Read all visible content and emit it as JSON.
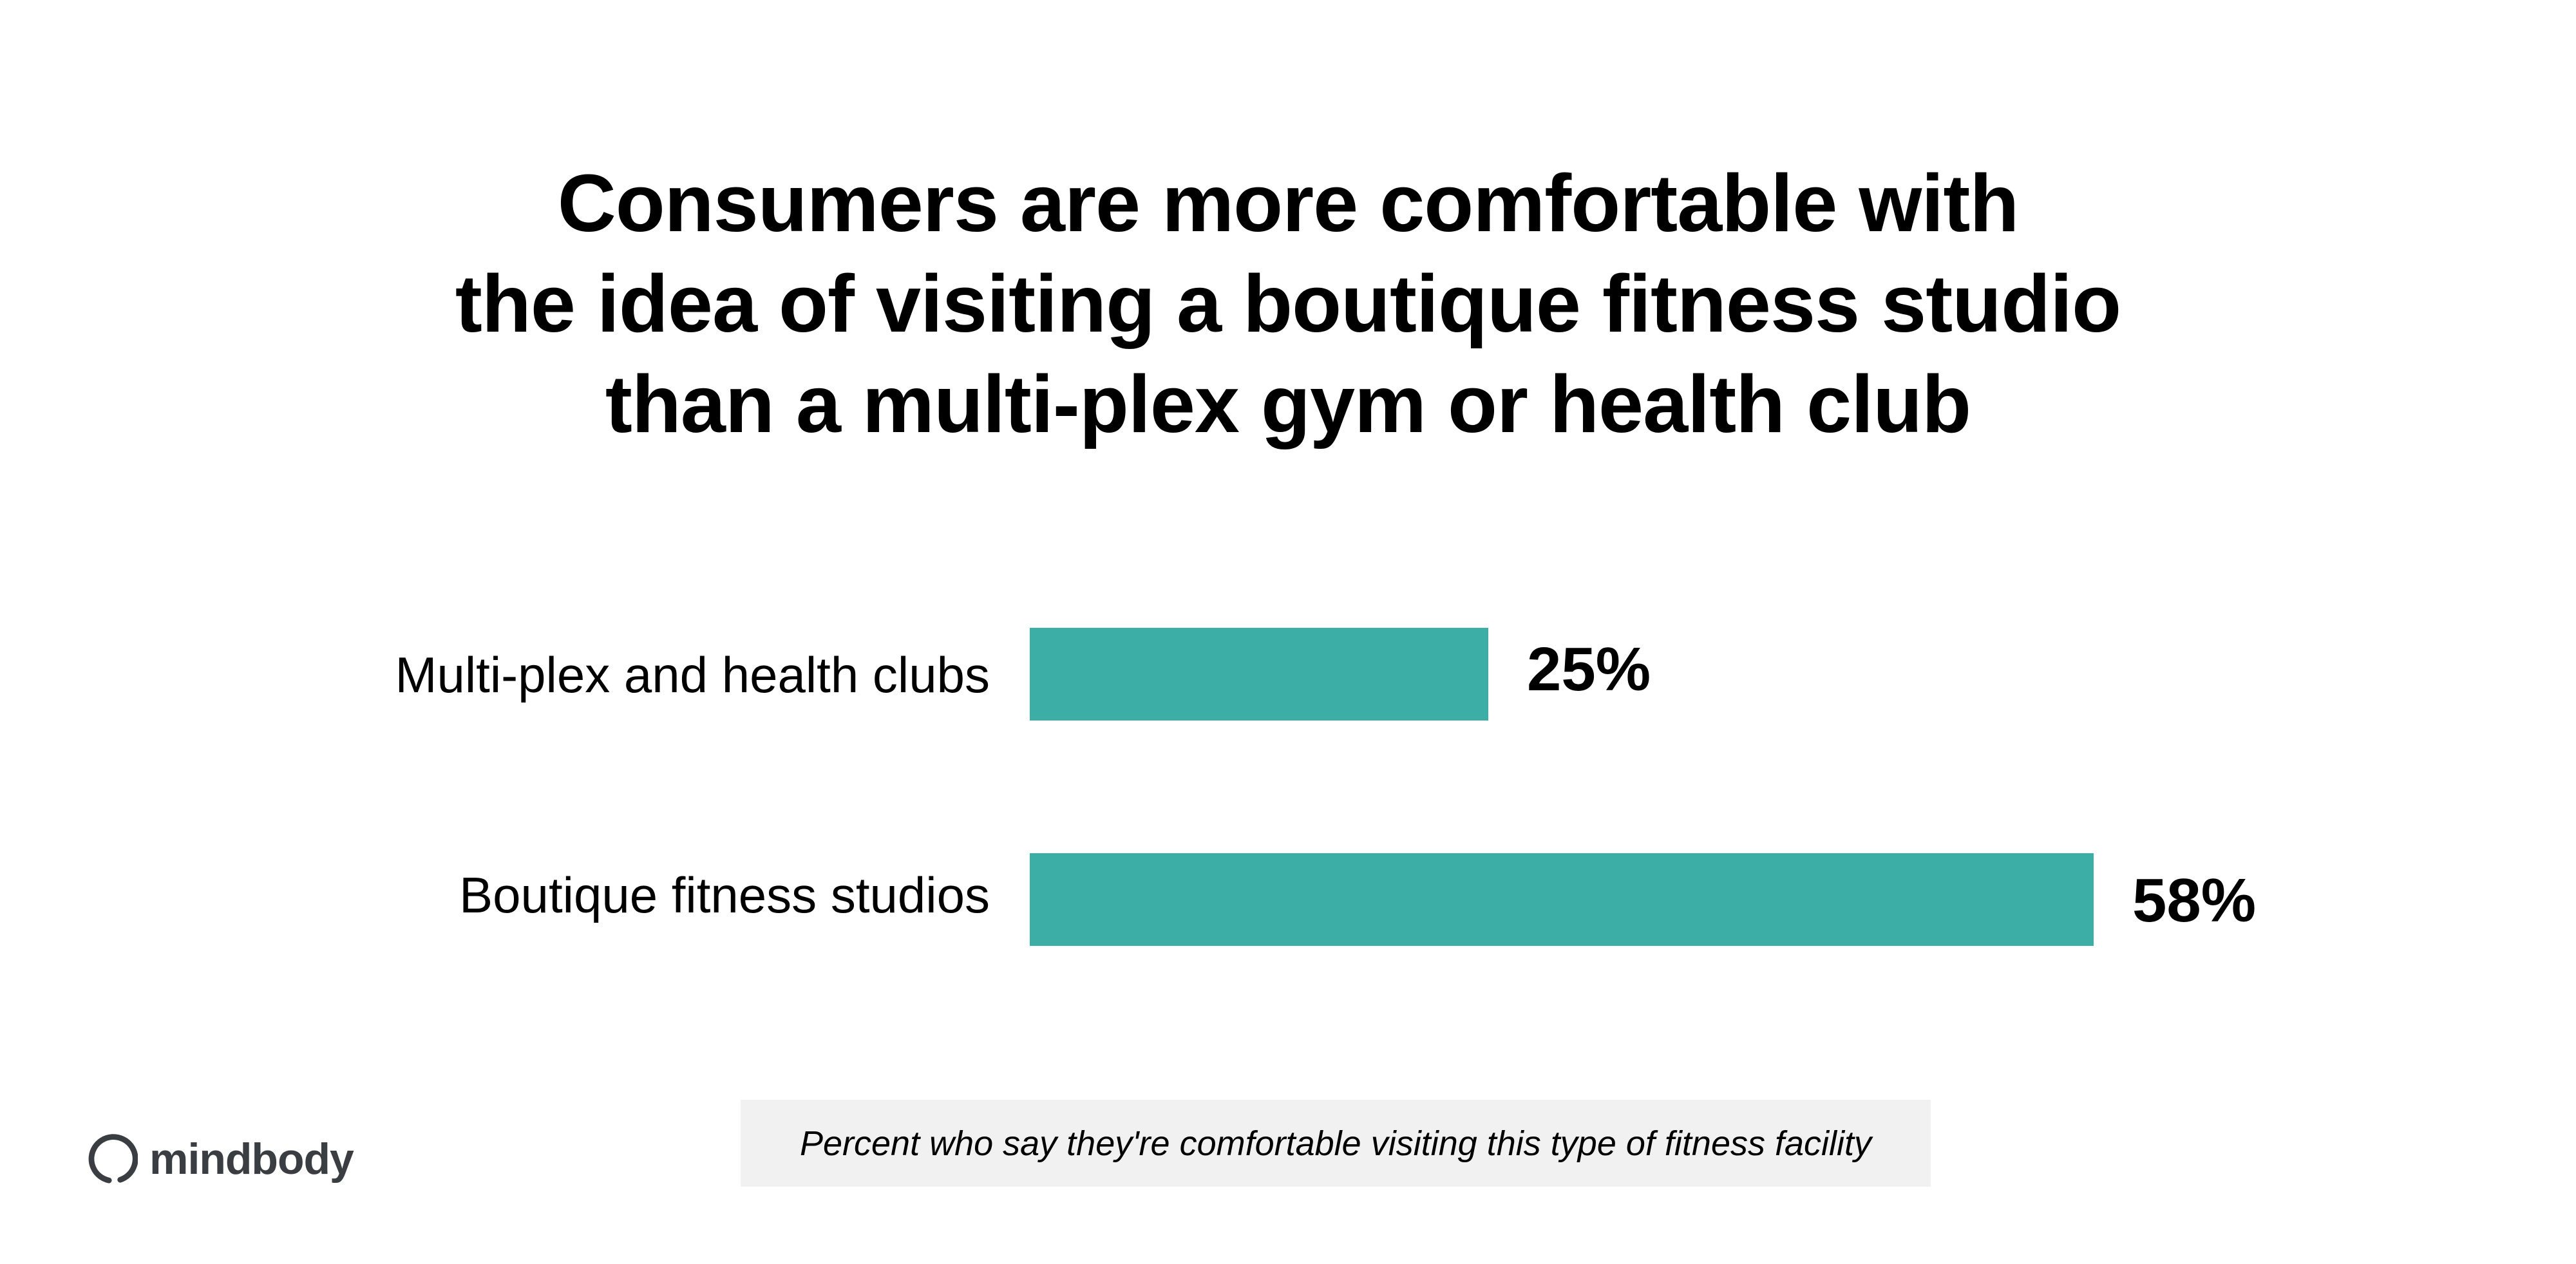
{
  "title": {
    "lines": [
      "Consumers are more comfortable with",
      "the idea of visiting a boutique fitness studio",
      "than a multi-plex gym or health club"
    ]
  },
  "chart": {
    "bar_color": "#3DAEA5",
    "rows": [
      {
        "label": "Multi-plex and health clubs",
        "value": 25,
        "value_label": "25%"
      },
      {
        "label": "Boutique fitness studios",
        "value": 58,
        "value_label": "58%"
      }
    ]
  },
  "footnote": {
    "text": "Percent who say they're comfortable visiting this type of fitness facility"
  },
  "brand": {
    "logo_text": "mindbody",
    "logo_icon": "enso-circle-icon",
    "color": "#3A3D42"
  },
  "chart_data": {
    "type": "bar",
    "orientation": "horizontal",
    "title": "Consumers are more comfortable with the idea of visiting a boutique fitness studio than a multi-plex gym or health club",
    "categories": [
      "Multi-plex and health clubs",
      "Boutique fitness studios"
    ],
    "values": [
      25,
      58
    ],
    "value_labels": [
      "25%",
      "58%"
    ],
    "xlabel": "Percent who say they're comfortable visiting this type of fitness facility",
    "ylabel": "",
    "unit": "%",
    "grid": false,
    "legend": null,
    "colors": [
      "#3DAEA5",
      "#3DAEA5"
    ]
  }
}
